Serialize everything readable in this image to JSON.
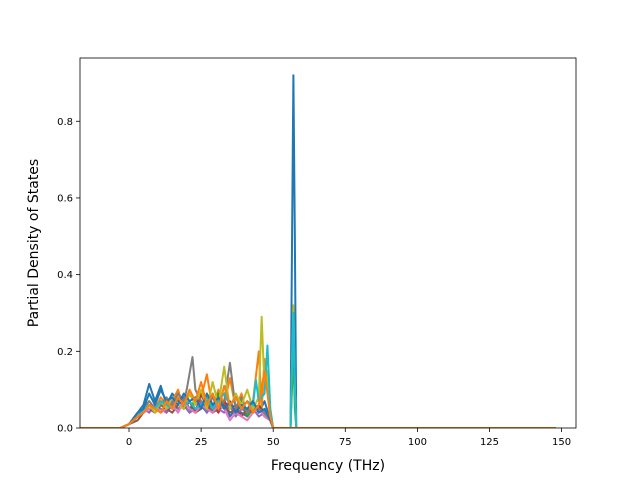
{
  "chart_data": {
    "type": "line",
    "title": "",
    "xlabel": "Frequency (THz)",
    "ylabel": "Partial Density of States",
    "xlim": [
      -17,
      155
    ],
    "ylim": [
      0,
      0.965
    ],
    "x_ticks": [
      "0",
      "25",
      "50",
      "75",
      "100",
      "125",
      "150"
    ],
    "x_tick_values": [
      0,
      25,
      50,
      75,
      100,
      125,
      150
    ],
    "y_ticks": [
      "0.0",
      "0.2",
      "0.4",
      "0.6",
      "0.8"
    ],
    "y_tick_values": [
      0,
      0.2,
      0.4,
      0.6,
      0.8
    ],
    "grid": false,
    "legend": "none",
    "series": [
      {
        "color": "#1f77b4",
        "x": [
          -17,
          -3,
          0,
          3,
          5,
          7,
          9,
          11,
          13,
          15,
          17,
          19,
          21,
          23,
          25,
          27,
          29,
          31,
          33,
          35,
          37,
          39,
          41,
          43,
          45,
          47,
          49,
          50,
          56,
          57,
          57.5,
          58,
          58.5,
          59,
          148
        ],
        "y": [
          0,
          0,
          0.01,
          0.04,
          0.06,
          0.115,
          0.07,
          0.11,
          0.06,
          0.09,
          0.07,
          0.08,
          0.05,
          0.07,
          0.06,
          0.04,
          0.09,
          0.05,
          0.07,
          0.03,
          0.05,
          0.04,
          0.03,
          0.06,
          0.04,
          0.07,
          0.02,
          0,
          0,
          0.92,
          0.5,
          0,
          0,
          0,
          0
        ]
      },
      {
        "color": "#ff7f0e",
        "x": [
          -17,
          -3,
          0,
          3,
          5,
          7,
          9,
          11,
          13,
          15,
          17,
          19,
          21,
          23,
          25,
          27,
          29,
          31,
          33,
          35,
          37,
          39,
          41,
          43,
          45,
          46,
          47,
          48,
          49,
          50,
          56,
          57,
          57.5,
          58,
          148
        ],
        "y": [
          0,
          0,
          0.01,
          0.04,
          0.05,
          0.07,
          0.05,
          0.08,
          0.06,
          0.07,
          0.1,
          0.05,
          0.09,
          0.06,
          0.08,
          0.14,
          0.05,
          0.1,
          0.06,
          0.13,
          0.05,
          0.09,
          0.03,
          0.07,
          0.2,
          0.05,
          0.18,
          0.1,
          0.02,
          0,
          0,
          0.25,
          0.1,
          0,
          0
        ]
      },
      {
        "color": "#2ca02c",
        "x": [
          -17,
          -3,
          0,
          3,
          5,
          7,
          9,
          11,
          13,
          15,
          17,
          19,
          21,
          23,
          25,
          27,
          29,
          31,
          33,
          35,
          37,
          39,
          41,
          43,
          45,
          47,
          49,
          50,
          56,
          57,
          57.5,
          58,
          148
        ],
        "y": [
          0,
          0,
          0.01,
          0.03,
          0.04,
          0.05,
          0.04,
          0.06,
          0.05,
          0.07,
          0.05,
          0.06,
          0.04,
          0.08,
          0.05,
          0.07,
          0.04,
          0.09,
          0.05,
          0.06,
          0.04,
          0.07,
          0.03,
          0.05,
          0.06,
          0.04,
          0.02,
          0,
          0,
          0.2,
          0.05,
          0,
          0
        ]
      },
      {
        "color": "#d62728",
        "x": [
          -17,
          -3,
          0,
          3,
          5,
          7,
          9,
          11,
          13,
          15,
          17,
          19,
          21,
          23,
          25,
          27,
          29,
          31,
          33,
          35,
          37,
          39,
          41,
          43,
          45,
          47,
          49,
          50,
          148
        ],
        "y": [
          0,
          0,
          0.01,
          0.03,
          0.04,
          0.06,
          0.05,
          0.07,
          0.04,
          0.06,
          0.08,
          0.05,
          0.07,
          0.04,
          0.09,
          0.05,
          0.06,
          0.04,
          0.07,
          0.05,
          0.06,
          0.03,
          0.05,
          0.04,
          0.06,
          0.03,
          0.02,
          0,
          0
        ]
      },
      {
        "color": "#9467bd",
        "x": [
          -17,
          -3,
          0,
          3,
          5,
          7,
          9,
          11,
          13,
          15,
          17,
          19,
          21,
          23,
          25,
          27,
          29,
          31,
          33,
          35,
          37,
          39,
          41,
          43,
          45,
          47,
          49,
          50,
          148
        ],
        "y": [
          0,
          0,
          0.01,
          0.03,
          0.05,
          0.04,
          0.06,
          0.05,
          0.04,
          0.07,
          0.05,
          0.06,
          0.04,
          0.05,
          0.07,
          0.04,
          0.06,
          0.05,
          0.04,
          0.06,
          0.03,
          0.05,
          0.04,
          0.05,
          0.03,
          0.04,
          0.02,
          0,
          0
        ]
      },
      {
        "color": "#8c564b",
        "x": [
          -17,
          -3,
          0,
          3,
          5,
          7,
          9,
          11,
          13,
          15,
          17,
          19,
          21,
          23,
          25,
          27,
          29,
          31,
          33,
          35,
          37,
          39,
          41,
          43,
          45,
          47,
          49,
          50,
          148
        ],
        "y": [
          0,
          0,
          0.01,
          0.02,
          0.04,
          0.05,
          0.04,
          0.06,
          0.05,
          0.04,
          0.06,
          0.05,
          0.07,
          0.04,
          0.05,
          0.06,
          0.04,
          0.05,
          0.06,
          0.04,
          0.05,
          0.03,
          0.05,
          0.04,
          0.05,
          0.03,
          0.02,
          0,
          0
        ]
      },
      {
        "color": "#e377c2",
        "x": [
          -17,
          -3,
          0,
          3,
          5,
          7,
          9,
          11,
          13,
          15,
          17,
          19,
          21,
          23,
          25,
          27,
          29,
          31,
          33,
          35,
          37,
          39,
          41,
          43,
          45,
          47,
          49,
          50,
          148
        ],
        "y": [
          0,
          0,
          0.01,
          0.03,
          0.04,
          0.05,
          0.06,
          0.04,
          0.05,
          0.06,
          0.04,
          0.07,
          0.05,
          0.04,
          0.06,
          0.05,
          0.04,
          0.06,
          0.05,
          0.02,
          0.04,
          0.03,
          0.02,
          0.04,
          0.05,
          0.03,
          0.02,
          0,
          0
        ]
      },
      {
        "color": "#7f7f7f",
        "x": [
          -17,
          -3,
          0,
          3,
          5,
          7,
          9,
          11,
          13,
          15,
          17,
          19,
          20,
          22,
          23,
          25,
          27,
          29,
          31,
          33,
          35,
          37,
          39,
          41,
          43,
          45,
          47,
          49,
          50,
          148
        ],
        "y": [
          0,
          0,
          0.01,
          0.04,
          0.05,
          0.07,
          0.05,
          0.06,
          0.08,
          0.06,
          0.09,
          0.07,
          0.1,
          0.185,
          0.1,
          0.07,
          0.06,
          0.08,
          0.05,
          0.07,
          0.17,
          0.05,
          0.08,
          0.04,
          0.06,
          0.05,
          0.04,
          0.02,
          0,
          0
        ]
      },
      {
        "color": "#bcbd22",
        "x": [
          -17,
          -3,
          0,
          3,
          5,
          7,
          9,
          11,
          13,
          15,
          17,
          19,
          21,
          23,
          25,
          27,
          29,
          31,
          33,
          35,
          37,
          39,
          41,
          43,
          45,
          46,
          47,
          48,
          49,
          50,
          56,
          57,
          57.5,
          58,
          148
        ],
        "y": [
          0,
          0,
          0.01,
          0.03,
          0.05,
          0.06,
          0.04,
          0.07,
          0.05,
          0.08,
          0.06,
          0.05,
          0.09,
          0.06,
          0.1,
          0.05,
          0.12,
          0.06,
          0.16,
          0.05,
          0.09,
          0.06,
          0.1,
          0.05,
          0.08,
          0.29,
          0.1,
          0.15,
          0.03,
          0,
          0,
          0.32,
          0.1,
          0,
          0
        ]
      },
      {
        "color": "#17becf",
        "x": [
          -17,
          -3,
          0,
          3,
          5,
          7,
          9,
          11,
          13,
          15,
          17,
          19,
          21,
          23,
          25,
          27,
          29,
          31,
          33,
          35,
          37,
          39,
          41,
          43,
          44,
          45,
          47,
          48,
          49,
          50,
          56,
          57,
          57.5,
          58,
          148
        ],
        "y": [
          0,
          0,
          0.01,
          0.03,
          0.05,
          0.06,
          0.05,
          0.07,
          0.06,
          0.05,
          0.08,
          0.06,
          0.07,
          0.05,
          0.06,
          0.08,
          0.05,
          0.07,
          0.09,
          0.06,
          0.08,
          0.05,
          0.07,
          0.06,
          0.125,
          0.07,
          0.09,
          0.215,
          0.05,
          0,
          0,
          0.3,
          0.1,
          0,
          0
        ]
      },
      {
        "color": "#1f77b4",
        "x": [
          -17,
          -3,
          0,
          3,
          5,
          7,
          9,
          11,
          13,
          15,
          17,
          19,
          21,
          23,
          25,
          27,
          29,
          31,
          33,
          35,
          37,
          39,
          41,
          43,
          45,
          47,
          49,
          50,
          148
        ],
        "y": [
          0,
          0,
          0.01,
          0.04,
          0.05,
          0.09,
          0.06,
          0.1,
          0.07,
          0.08,
          0.06,
          0.09,
          0.07,
          0.08,
          0.05,
          0.09,
          0.06,
          0.08,
          0.05,
          0.07,
          0.04,
          0.06,
          0.05,
          0.07,
          0.04,
          0.05,
          0.02,
          0,
          0
        ]
      },
      {
        "color": "#ff7f0e",
        "x": [
          -17,
          -3,
          0,
          3,
          5,
          7,
          9,
          11,
          13,
          15,
          17,
          19,
          21,
          23,
          25,
          27,
          29,
          31,
          33,
          35,
          37,
          39,
          41,
          43,
          45,
          47,
          49,
          50,
          148
        ],
        "y": [
          0,
          0,
          0.01,
          0.03,
          0.04,
          0.06,
          0.05,
          0.04,
          0.07,
          0.05,
          0.08,
          0.06,
          0.1,
          0.07,
          0.12,
          0.06,
          0.09,
          0.05,
          0.11,
          0.06,
          0.08,
          0.05,
          0.07,
          0.04,
          0.06,
          0.15,
          0.03,
          0,
          0
        ]
      }
    ]
  }
}
